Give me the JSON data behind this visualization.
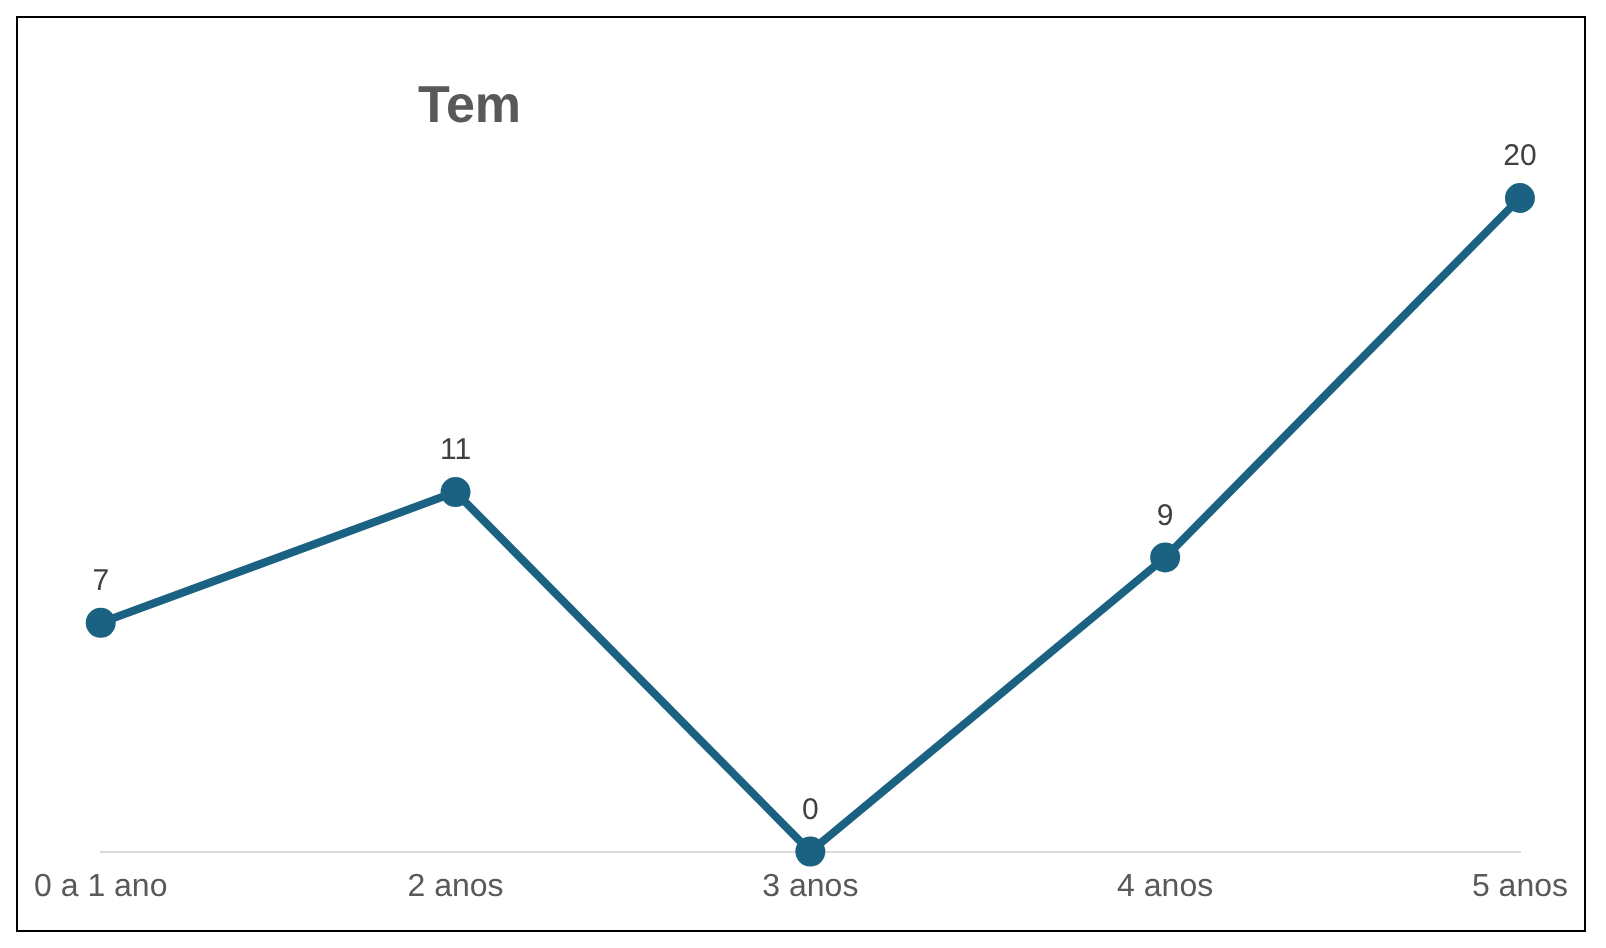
{
  "chart_data": {
    "type": "line",
    "title": "Tem",
    "categories": [
      "0 a 1 ano",
      "2 anos",
      "3 anos",
      "4 anos",
      "5 anos"
    ],
    "series": [
      {
        "color": "#1b6182",
        "values": [
          7,
          11,
          0,
          9,
          20
        ]
      }
    ],
    "data_labels": true,
    "marker": "circle",
    "line_style": "solid",
    "grid": false,
    "legend": false,
    "tick_labels": "x"
  }
}
